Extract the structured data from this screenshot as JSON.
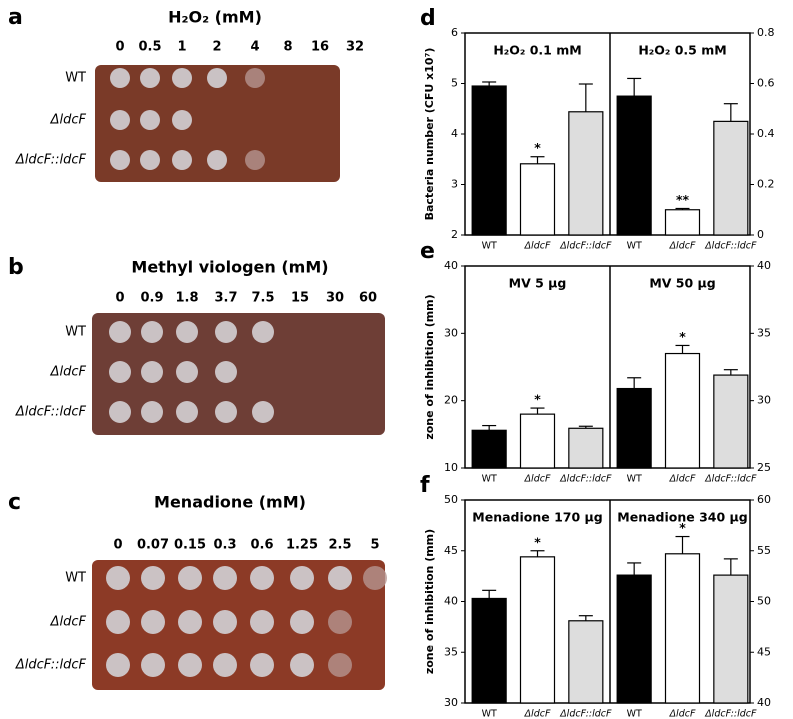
{
  "plates": [
    {
      "label": "a",
      "title": "H₂O₂ (mM)",
      "concentrations": [
        "0",
        "0.5",
        "1",
        "2",
        "4",
        "8",
        "16",
        "32"
      ],
      "strains": [
        "WT",
        "ΔldcF",
        "ΔldcF::ldcF"
      ]
    },
    {
      "label": "b",
      "title": "Methyl viologen (mM)",
      "concentrations": [
        "0",
        "0.9",
        "1.8",
        "3.7",
        "7.5",
        "15",
        "30",
        "60"
      ],
      "strains": [
        "WT",
        "ΔldcF",
        "ΔldcF::ldcF"
      ]
    },
    {
      "label": "c",
      "title": "Menadione (mM)",
      "concentrations": [
        "0",
        "0.07",
        "0.15",
        "0.3",
        "0.6",
        "1.25",
        "2.5",
        "5"
      ],
      "strains": [
        "WT",
        "ΔldcF",
        "ΔldcF::ldcF"
      ]
    }
  ],
  "chart_data": [
    {
      "type": "bar",
      "label": "d",
      "ylabel": "Bacteria number (CFU x10⁷)",
      "categories": [
        "WT",
        "ΔldcF",
        "ΔldcF::ldcF"
      ],
      "colors": [
        "#000000",
        "#ffffff",
        "#dddddd"
      ],
      "ylim": [
        2,
        6
      ],
      "yticks": [
        2,
        3,
        4,
        5,
        6
      ],
      "y2lim": [
        0,
        0.8
      ],
      "y2ticks": [
        0,
        0.2,
        0.4,
        0.6,
        0.8
      ],
      "series": [
        {
          "name": "H₂O₂ 0.1 mM",
          "values": [
            4.95,
            3.41,
            4.44
          ],
          "errors": [
            0.08,
            0.14,
            0.55
          ],
          "marks": [
            null,
            "*",
            null
          ]
        },
        {
          "name": "H₂O₂ 0.5 mM",
          "axis": "y2",
          "values": [
            0.55,
            0.1,
            0.45
          ],
          "errors": [
            0.07,
            0.005,
            0.07
          ],
          "marks": [
            null,
            "**",
            null
          ]
        }
      ]
    },
    {
      "type": "bar",
      "label": "e",
      "ylabel": "zone of inhibition (mm)",
      "categories": [
        "WT",
        "ΔldcF",
        "ΔldcF::ldcF"
      ],
      "colors": [
        "#000000",
        "#ffffff",
        "#dddddd"
      ],
      "ylim": [
        10,
        40
      ],
      "yticks": [
        10,
        20,
        30,
        40
      ],
      "y2lim": [
        25,
        40
      ],
      "y2ticks": [
        25,
        30,
        35,
        40
      ],
      "series": [
        {
          "name": "MV 5 µg",
          "values": [
            15.6,
            18.0,
            15.9
          ],
          "errors": [
            0.7,
            0.9,
            0.3
          ],
          "marks": [
            null,
            "*",
            null
          ]
        },
        {
          "name": "MV 50 µg",
          "axis": "y2",
          "values": [
            30.9,
            33.5,
            31.9
          ],
          "errors": [
            0.8,
            0.6,
            0.4
          ],
          "marks": [
            null,
            "*",
            null
          ]
        }
      ]
    },
    {
      "type": "bar",
      "label": "f",
      "ylabel": "zone of inhibition (mm)",
      "categories": [
        "WT",
        "ΔldcF",
        "ΔldcF::ldcF"
      ],
      "colors": [
        "#000000",
        "#ffffff",
        "#dddddd"
      ],
      "ylim": [
        30,
        50
      ],
      "yticks": [
        30,
        35,
        40,
        45,
        50
      ],
      "y2lim": [
        40,
        60
      ],
      "y2ticks": [
        40,
        45,
        50,
        55,
        60
      ],
      "series": [
        {
          "name": "Menadione 170 µg",
          "values": [
            40.3,
            44.4,
            38.1
          ],
          "errors": [
            0.8,
            0.6,
            0.5
          ],
          "marks": [
            null,
            "*",
            null
          ]
        },
        {
          "name": "Menadione 340 µg",
          "axis": "y2",
          "values": [
            52.6,
            54.7,
            52.6
          ],
          "errors": [
            1.2,
            1.7,
            1.6
          ],
          "marks": [
            null,
            "*",
            null
          ]
        }
      ]
    }
  ]
}
